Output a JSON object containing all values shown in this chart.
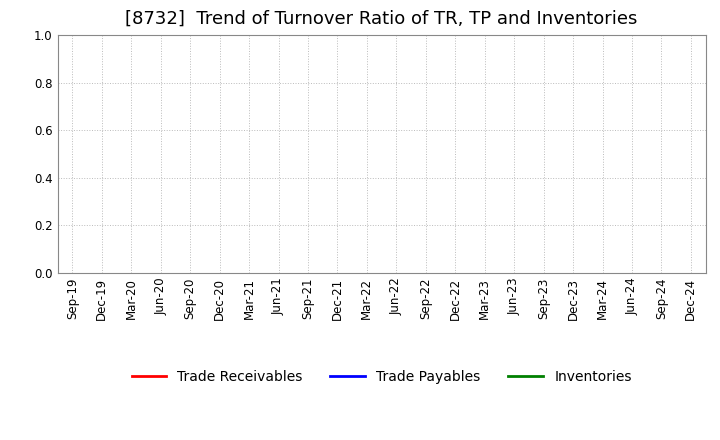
{
  "title": "[8732]  Trend of Turnover Ratio of TR, TP and Inventories",
  "ylim": [
    0.0,
    1.0
  ],
  "yticks": [
    0.0,
    0.2,
    0.4,
    0.6,
    0.8,
    1.0
  ],
  "x_labels": [
    "Sep-19",
    "Dec-19",
    "Mar-20",
    "Jun-20",
    "Sep-20",
    "Dec-20",
    "Mar-21",
    "Jun-21",
    "Sep-21",
    "Dec-21",
    "Mar-22",
    "Jun-22",
    "Sep-22",
    "Dec-22",
    "Mar-23",
    "Jun-23",
    "Sep-23",
    "Dec-23",
    "Mar-24",
    "Jun-24",
    "Sep-24",
    "Dec-24"
  ],
  "legend_entries": [
    {
      "label": "Trade Receivables",
      "color": "#ff0000"
    },
    {
      "label": "Trade Payables",
      "color": "#0000ff"
    },
    {
      "label": "Inventories",
      "color": "#008000"
    }
  ],
  "grid_color": "#bbbbbb",
  "background_color": "#ffffff",
  "title_fontsize": 13,
  "tick_fontsize": 8.5,
  "legend_fontsize": 10
}
